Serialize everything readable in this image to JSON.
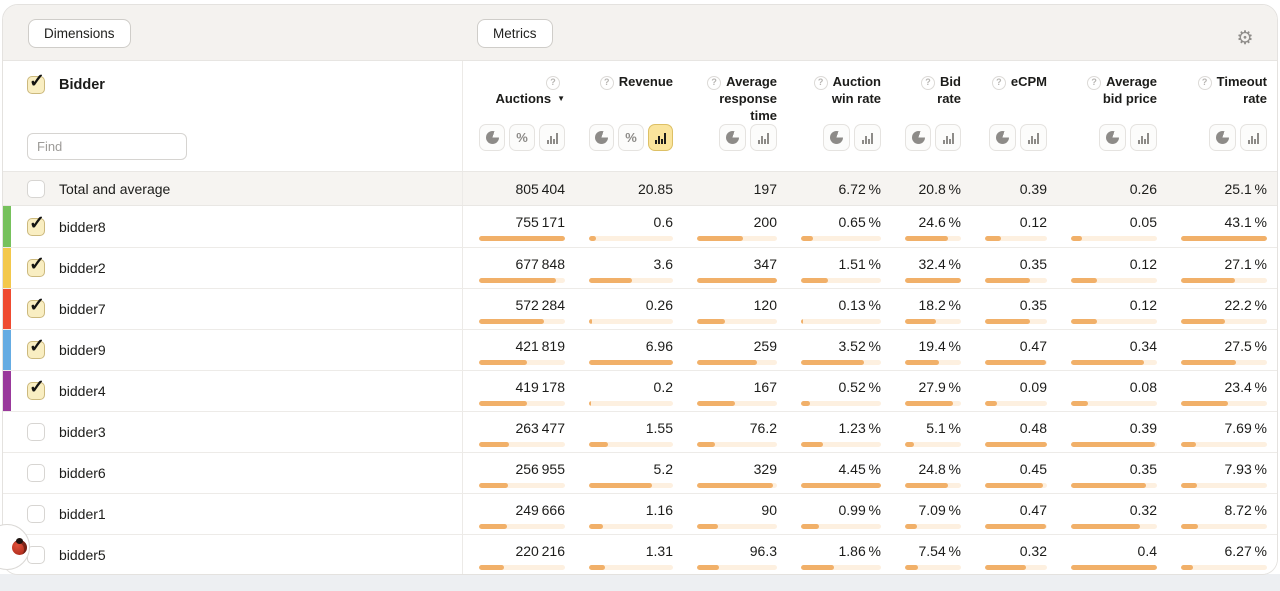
{
  "toolbar": {
    "dimensions_label": "Dimensions",
    "metrics_label": "Metrics",
    "settings_icon": "gear"
  },
  "dimension_panel": {
    "title": "Bidder",
    "checked": true,
    "find_placeholder": "Find"
  },
  "table": {
    "total_label": "Total and average",
    "help_glyph": "?",
    "sort_indicator": "▼",
    "columns": [
      {
        "id": "auctions",
        "label": "Auctions",
        "help_icon": "question-circle",
        "sorted": "desc",
        "toggles": [
          {
            "type": "pie",
            "active": false
          },
          {
            "type": "percent",
            "active": false
          },
          {
            "type": "bars",
            "active": false
          }
        ]
      },
      {
        "id": "revenue",
        "label": "Revenue",
        "help_icon": "question-circle",
        "toggles": [
          {
            "type": "pie",
            "active": false
          },
          {
            "type": "percent",
            "active": false
          },
          {
            "type": "bars",
            "active": true
          }
        ]
      },
      {
        "id": "avg_response_time",
        "label": "Average response time",
        "help_icon": "question-circle",
        "toggles": [
          {
            "type": "pie",
            "active": false
          },
          {
            "type": "bars",
            "active": false
          }
        ]
      },
      {
        "id": "auction_win_rate",
        "label": "Auction win rate",
        "help_icon": "question-circle",
        "toggles": [
          {
            "type": "pie",
            "active": false
          },
          {
            "type": "bars",
            "active": false
          }
        ]
      },
      {
        "id": "bid_rate",
        "label": "Bid rate",
        "help_icon": "question-circle",
        "toggles": [
          {
            "type": "pie",
            "active": false
          },
          {
            "type": "bars",
            "active": false
          }
        ]
      },
      {
        "id": "ecpm",
        "label": "eCPM",
        "help_icon": "question-circle",
        "toggles": [
          {
            "type": "pie",
            "active": false
          },
          {
            "type": "bars",
            "active": false
          }
        ]
      },
      {
        "id": "avg_bid_price",
        "label": "Average bid price",
        "help_icon": "question-circle",
        "toggles": [
          {
            "type": "pie",
            "active": false
          },
          {
            "type": "bars",
            "active": false
          }
        ]
      },
      {
        "id": "timeout_rate",
        "label": "Timeout rate",
        "help_icon": "question-circle",
        "toggles": [
          {
            "type": "pie",
            "active": false
          },
          {
            "type": "bars",
            "active": false
          }
        ]
      }
    ],
    "total_values": [
      "805 404",
      "20.85",
      "197",
      "6.72 %",
      "20.8 %",
      "0.39",
      "0.26",
      "25.1 %"
    ],
    "rows": [
      {
        "name": "bidder8",
        "checked": true,
        "stripe_color": "#76c15c",
        "values": [
          "755 171",
          "0.6",
          "200",
          "0.65 %",
          "24.6 %",
          "0.12",
          "0.05",
          "43.1 %"
        ],
        "bar_percents": [
          100,
          8.6,
          57.6,
          14.6,
          75.9,
          25,
          12.5,
          100
        ]
      },
      {
        "name": "bidder2",
        "checked": true,
        "stripe_color": "#f3c84b",
        "values": [
          "677 848",
          "3.6",
          "347",
          "1.51 %",
          "32.4 %",
          "0.35",
          "0.12",
          "27.1 %"
        ],
        "bar_percents": [
          89.8,
          51.7,
          100,
          33.9,
          100,
          72.9,
          30,
          62.9
        ]
      },
      {
        "name": "bidder7",
        "checked": true,
        "stripe_color": "#ef4b30",
        "values": [
          "572 284",
          "0.26",
          "120",
          "0.13 %",
          "18.2 %",
          "0.35",
          "0.12",
          "22.2 %"
        ],
        "bar_percents": [
          75.8,
          3.7,
          34.6,
          3,
          56.2,
          72.9,
          30,
          51.5
        ]
      },
      {
        "name": "bidder9",
        "checked": true,
        "stripe_color": "#65ace3",
        "values": [
          "421 819",
          "6.96",
          "259",
          "3.52 %",
          "19.4 %",
          "0.47",
          "0.34",
          "27.5 %"
        ],
        "bar_percents": [
          55.9,
          100,
          74.6,
          79.1,
          59.9,
          97.9,
          85,
          63.8
        ]
      },
      {
        "name": "bidder4",
        "checked": true,
        "stripe_color": "#99399b",
        "values": [
          "419 178",
          "0.2",
          "167",
          "0.52 %",
          "27.9 %",
          "0.09",
          "0.08",
          "23.4 %"
        ],
        "bar_percents": [
          55.5,
          2.9,
          48.1,
          11.7,
          86.1,
          18.8,
          20,
          54.3
        ]
      },
      {
        "name": "bidder3",
        "checked": false,
        "stripe_color": null,
        "values": [
          "263 477",
          "1.55",
          "76.2",
          "1.23 %",
          "5.1 %",
          "0.48",
          "0.39",
          "7.69 %"
        ],
        "bar_percents": [
          34.9,
          22.3,
          22,
          27.6,
          15.7,
          100,
          97.5,
          17.8
        ]
      },
      {
        "name": "bidder6",
        "checked": false,
        "stripe_color": null,
        "values": [
          "256 955",
          "5.2",
          "329",
          "4.45 %",
          "24.8 %",
          "0.45",
          "0.35",
          "7.93 %"
        ],
        "bar_percents": [
          34,
          74.7,
          94.8,
          100,
          76.5,
          93.8,
          87.5,
          18.4
        ]
      },
      {
        "name": "bidder1",
        "checked": false,
        "stripe_color": null,
        "values": [
          "249 666",
          "1.16",
          "90",
          "0.99 %",
          "7.09 %",
          "0.47",
          "0.32",
          "8.72 %"
        ],
        "bar_percents": [
          33.1,
          16.7,
          25.9,
          22.2,
          21.9,
          97.9,
          80,
          20.2
        ]
      },
      {
        "name": "bidder5",
        "checked": false,
        "stripe_color": null,
        "values": [
          "220 216",
          "1.31",
          "96.3",
          "1.86 %",
          "7.54 %",
          "0.32",
          "0.4",
          "6.27 %"
        ],
        "bar_percents": [
          29.2,
          18.8,
          27.8,
          41.8,
          23.3,
          66.7,
          100,
          14.5
        ]
      }
    ]
  },
  "colors": {
    "bar_fill": "#f1b069",
    "bar_track": "#fdf0e0",
    "active_toggle_bg": "#fae49c",
    "topbar_bg": "#f4f2ef",
    "total_row_bg": "#f6f4f1"
  },
  "debug_flap": {
    "icon": "ladybug"
  }
}
